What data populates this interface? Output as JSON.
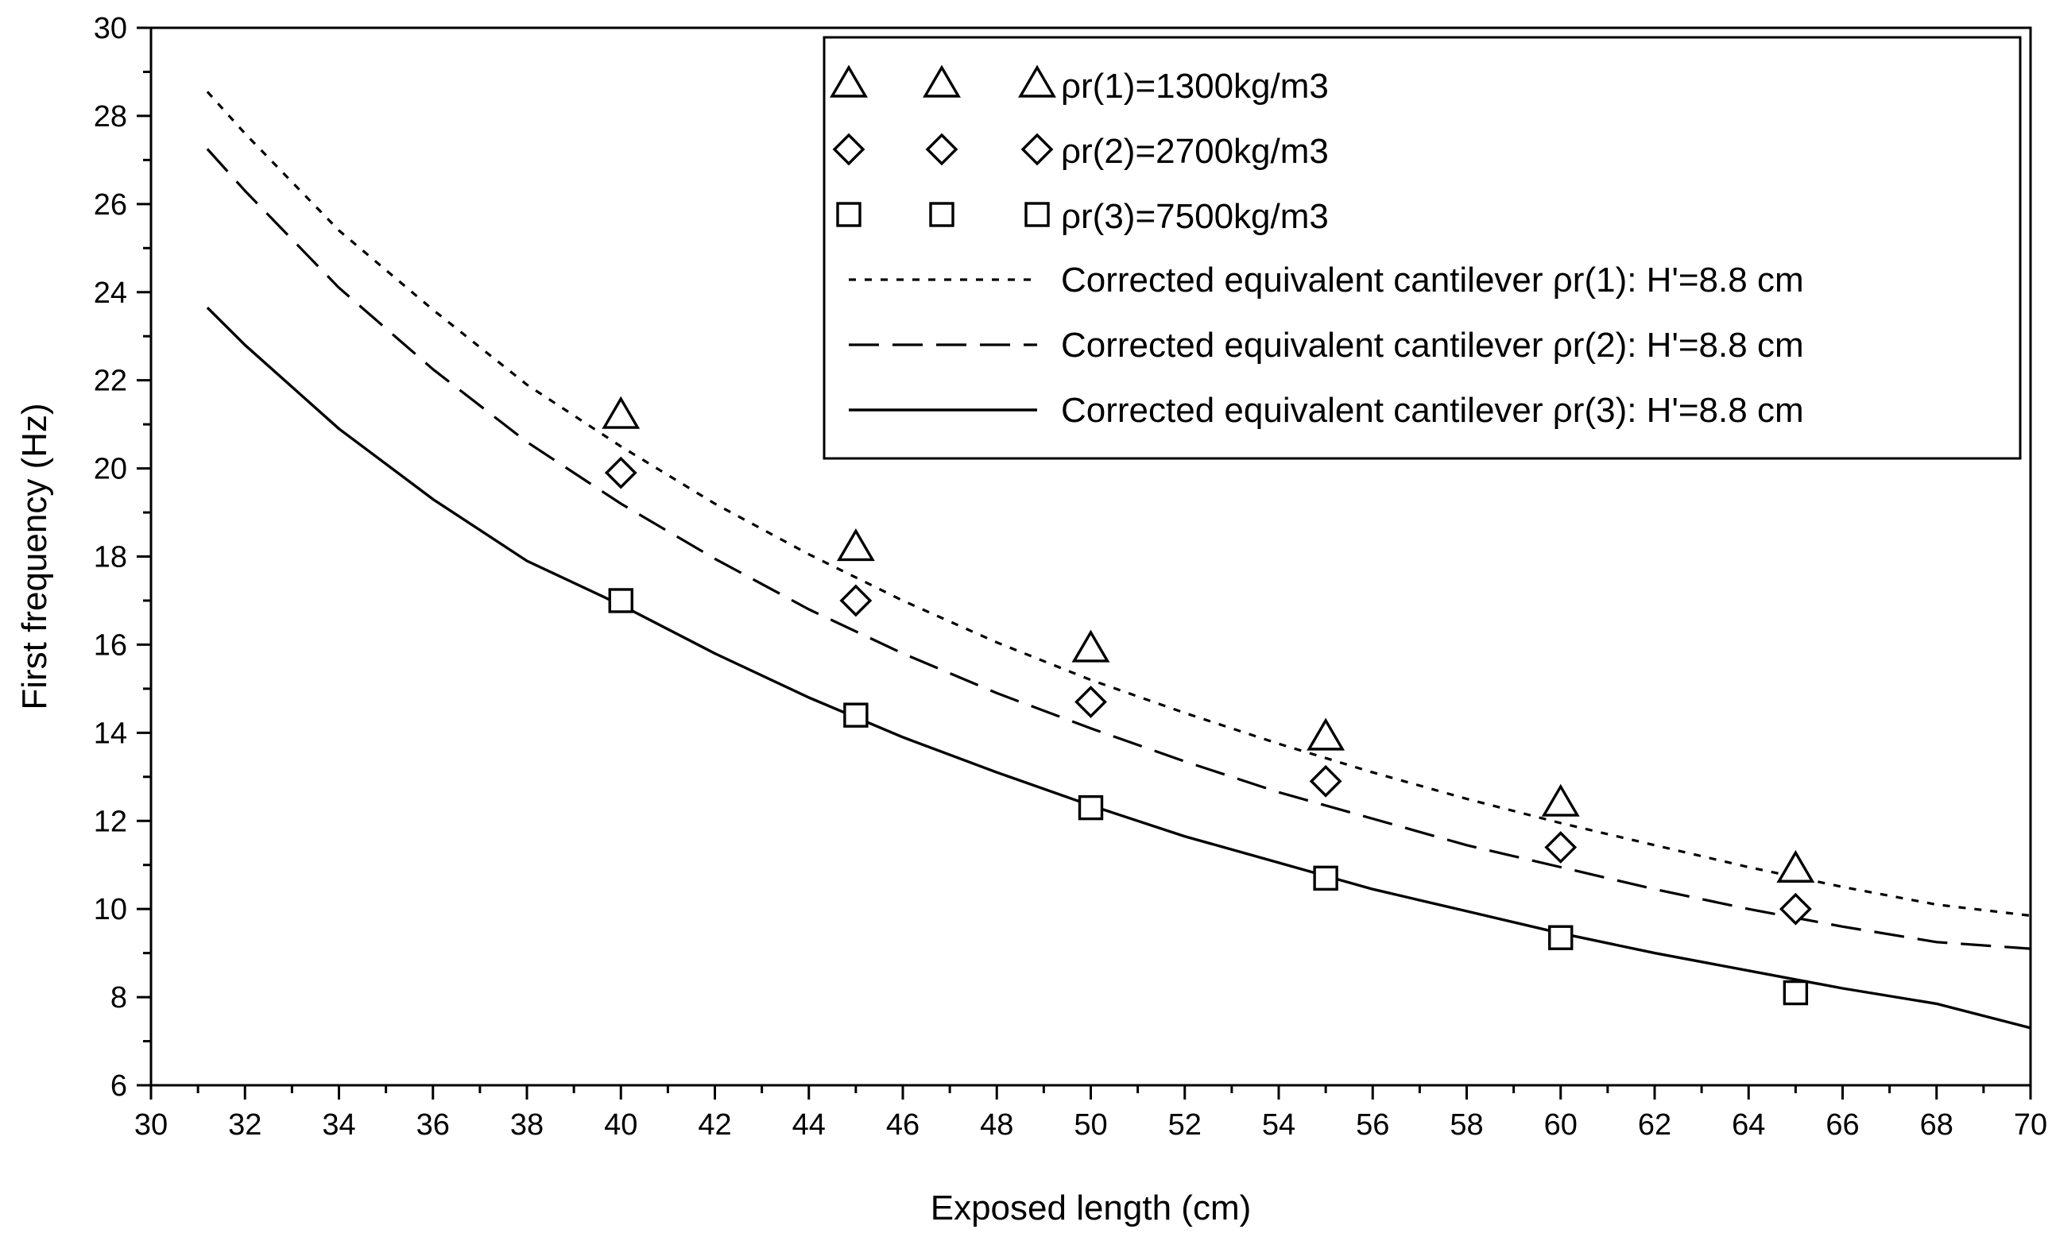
{
  "chart_data": {
    "type": "scatter",
    "title": "",
    "xlabel": "Exposed length (cm)",
    "ylabel": "First frequency (Hz)",
    "xlim": [
      30,
      70
    ],
    "ylim": [
      6,
      30
    ],
    "x_ticks": [
      30,
      32,
      34,
      36,
      38,
      40,
      42,
      44,
      46,
      48,
      50,
      52,
      54,
      56,
      58,
      60,
      62,
      64,
      66,
      68,
      70
    ],
    "y_ticks": [
      6,
      8,
      10,
      12,
      14,
      16,
      18,
      20,
      22,
      24,
      26,
      28,
      30
    ],
    "x_tick_labels": [
      "30",
      "32",
      "34",
      "36",
      "38",
      "40",
      "42",
      "44",
      "46",
      "48",
      "50",
      "52",
      "54",
      "56",
      "58",
      "60",
      "62",
      "64",
      "66",
      "68",
      "70"
    ],
    "y_tick_labels": [
      "6",
      "8",
      "10",
      "12",
      "14",
      "16",
      "18",
      "20",
      "22",
      "24",
      "26",
      "28",
      "30"
    ],
    "grid": false,
    "legend_position": "top-right",
    "series": [
      {
        "name": "ρr(1)=1300kg/m3",
        "marker": "triangle",
        "x": [
          40,
          45,
          50,
          55,
          60,
          65
        ],
        "y": [
          21.2,
          18.2,
          15.9,
          13.9,
          12.4,
          10.9
        ]
      },
      {
        "name": "ρr(2)=2700kg/m3",
        "marker": "diamond",
        "x": [
          40,
          45,
          50,
          55,
          60,
          65
        ],
        "y": [
          19.9,
          17.0,
          14.7,
          12.9,
          11.4,
          10.0
        ]
      },
      {
        "name": "ρr(3)=7500kg/m3",
        "marker": "square",
        "x": [
          40,
          45,
          50,
          55,
          60,
          65
        ],
        "y": [
          17.0,
          14.4,
          12.3,
          10.7,
          9.35,
          8.1
        ]
      }
    ],
    "curves": [
      {
        "name": "Corrected equivalent cantilever ρr(1): H'=8.8 cm",
        "style": "dotted",
        "x": [
          31.2,
          32,
          34,
          36,
          38,
          40,
          42,
          44,
          46,
          48,
          50,
          52,
          54,
          56,
          58,
          60,
          62,
          64,
          66,
          68,
          70
        ],
        "y": [
          28.55,
          27.6,
          25.4,
          23.6,
          21.9,
          20.5,
          19.2,
          18.05,
          17.0,
          16.05,
          15.2,
          14.45,
          13.75,
          13.1,
          12.5,
          11.95,
          11.45,
          10.95,
          10.5,
          10.1,
          9.85
        ]
      },
      {
        "name": "Corrected equivalent cantilever ρr(2): H'=8.8 cm",
        "style": "dashed",
        "x": [
          31.2,
          32,
          34,
          36,
          38,
          40,
          42,
          44,
          46,
          48,
          50,
          52,
          54,
          56,
          58,
          60,
          62,
          64,
          66,
          68,
          70
        ],
        "y": [
          27.25,
          26.3,
          24.1,
          22.25,
          20.6,
          19.2,
          17.95,
          16.8,
          15.8,
          14.9,
          14.1,
          13.35,
          12.65,
          12.05,
          11.45,
          10.95,
          10.45,
          10.0,
          9.6,
          9.25,
          9.1
        ]
      },
      {
        "name": "Corrected equivalent cantilever ρr(3): H'=8.8 cm",
        "style": "solid",
        "x": [
          31.2,
          32,
          34,
          36,
          38,
          40,
          42,
          44,
          46,
          48,
          50,
          52,
          54,
          56,
          58,
          60,
          62,
          64,
          66,
          68,
          70
        ],
        "y": [
          23.65,
          22.8,
          20.9,
          19.3,
          17.9,
          16.9,
          15.8,
          14.8,
          13.9,
          13.1,
          12.35,
          11.65,
          11.05,
          10.45,
          9.95,
          9.45,
          9.0,
          8.6,
          8.2,
          7.85,
          7.3
        ]
      }
    ],
    "legend": [
      {
        "label": "ρr(1)=1300kg/m3",
        "kind": "marker",
        "marker": "triangle"
      },
      {
        "label": "ρr(2)=2700kg/m3",
        "kind": "marker",
        "marker": "diamond"
      },
      {
        "label": "ρr(3)=7500kg/m3",
        "kind": "marker",
        "marker": "square"
      },
      {
        "label": "Corrected equivalent cantilever ρr(1): H'=8.8 cm",
        "kind": "line",
        "style": "dotted"
      },
      {
        "label": "Corrected equivalent cantilever ρr(2): H'=8.8 cm",
        "kind": "line",
        "style": "dashed"
      },
      {
        "label": "Corrected equivalent cantilever ρr(3): H'=8.8 cm",
        "kind": "line",
        "style": "solid"
      }
    ],
    "colors": {
      "ink": "#000000",
      "background": "#ffffff"
    }
  }
}
